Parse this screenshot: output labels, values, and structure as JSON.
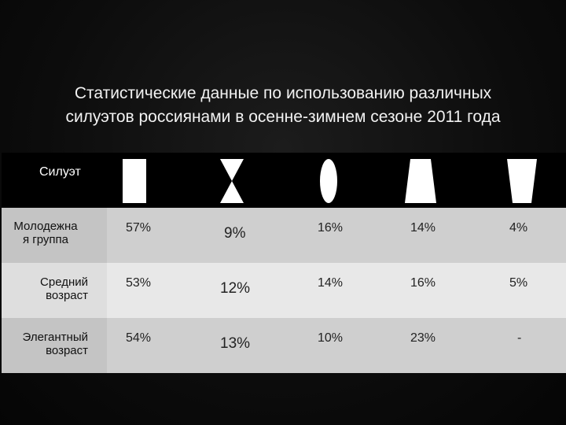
{
  "title": {
    "line1": "Статистические данные по использованию различных",
    "line2": "силуэтов россиянами в осенне-зимнем сезоне 2011 года"
  },
  "table": {
    "header_label": "Силуэт",
    "silhouettes": [
      "rectangle-silhouette-icon",
      "hourglass-silhouette-icon",
      "oval-silhouette-icon",
      "trapezoid-silhouette-icon",
      "inverted-trapezoid-silhouette-icon"
    ],
    "rows": [
      {
        "label": "Молодежна я группа",
        "label_l1": "Молодежна",
        "label_l2": "я группа",
        "values": [
          "57%",
          "9%",
          "16%",
          "14%",
          "4%"
        ]
      },
      {
        "label": "Средний возраст",
        "label_l1": "Средний",
        "label_l2": "возраст",
        "values": [
          "53%",
          "12%",
          "14%",
          "16%",
          "5%"
        ]
      },
      {
        "label": "Элегантный возраст",
        "label_l1": "Элегантный",
        "label_l2": "возраст",
        "values": [
          "54%",
          "13%",
          "10%",
          "23%",
          "-"
        ]
      }
    ]
  }
}
